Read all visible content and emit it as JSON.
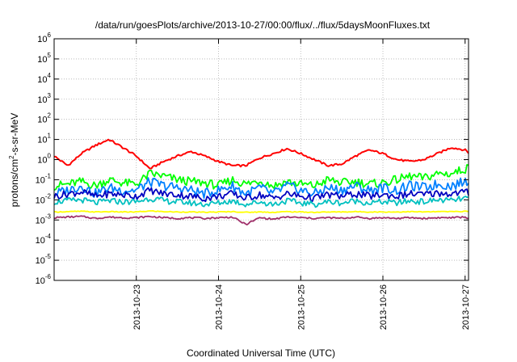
{
  "chart_data": {
    "type": "line",
    "title": "/data/run/goesPlots/archive/2013-10-27/00:00/flux/../flux/5daysMoonFluxes.txt",
    "xlabel": "Coordinated Universal Time (UTC)",
    "ylabel": "protons/cm2-s-sr-MeV",
    "ylabel_parts": {
      "base": "protons/cm",
      "sup": "2",
      "rest": "-s-sr-MeV"
    },
    "yscale": "log",
    "ylim": [
      1e-06,
      1000000.0
    ],
    "xlim": [
      "2013-10-22 00:00",
      "2013-10-27 01:00"
    ],
    "grid": true,
    "x_ticks": [
      {
        "label": "2013-10-23",
        "value": "2013-10-23 00:00"
      },
      {
        "label": "2013-10-24",
        "value": "2013-10-24 00:00"
      },
      {
        "label": "2013-10-25",
        "value": "2013-10-25 00:00"
      },
      {
        "label": "2013-10-26",
        "value": "2013-10-26 00:00"
      },
      {
        "label": "2013-10-27",
        "value": "2013-10-27 00:00"
      }
    ],
    "y_ticks": [
      {
        "base": "10",
        "exp": "-6",
        "value": 1e-06
      },
      {
        "base": "10",
        "exp": "-5",
        "value": 1e-05
      },
      {
        "base": "10",
        "exp": "-4",
        "value": 0.0001
      },
      {
        "base": "10",
        "exp": "-3",
        "value": 0.001
      },
      {
        "base": "10",
        "exp": "-2",
        "value": 0.01
      },
      {
        "base": "10",
        "exp": "-1",
        "value": 0.1
      },
      {
        "base": "10",
        "exp": "0",
        "value": 1
      },
      {
        "base": "10",
        "exp": "1",
        "value": 10
      },
      {
        "base": "10",
        "exp": "2",
        "value": 100
      },
      {
        "base": "10",
        "exp": "3",
        "value": 1000
      },
      {
        "base": "10",
        "exp": "4",
        "value": 10000
      },
      {
        "base": "10",
        "exp": "5",
        "value": 100000
      },
      {
        "base": "10",
        "exp": "6",
        "value": 1000000
      }
    ],
    "series": [
      {
        "color": "#ff0000",
        "x": [
          "2013-10-22 00:00",
          "2013-10-22 04:00",
          "2013-10-22 08:00",
          "2013-10-22 12:00",
          "2013-10-22 16:00",
          "2013-10-22 20:00",
          "2013-10-23 00:00",
          "2013-10-23 04:00",
          "2013-10-23 08:00",
          "2013-10-23 12:00",
          "2013-10-23 16:00",
          "2013-10-23 20:00",
          "2013-10-24 00:00",
          "2013-10-24 04:00",
          "2013-10-24 08:00",
          "2013-10-24 12:00",
          "2013-10-24 16:00",
          "2013-10-24 20:00",
          "2013-10-25 00:00",
          "2013-10-25 04:00",
          "2013-10-25 08:00",
          "2013-10-25 12:00",
          "2013-10-25 16:00",
          "2013-10-25 20:00",
          "2013-10-26 00:00",
          "2013-10-26 04:00",
          "2013-10-26 08:00",
          "2013-10-26 12:00",
          "2013-10-26 16:00",
          "2013-10-26 20:00",
          "2013-10-27 00:00",
          "2013-10-27 01:00"
        ],
        "values": [
          1.5,
          0.5,
          2,
          5,
          10,
          4,
          1.5,
          0.35,
          0.8,
          1.5,
          2.5,
          1.5,
          0.8,
          0.5,
          0.5,
          1.2,
          2,
          3.5,
          2,
          1,
          0.5,
          0.6,
          1.5,
          3,
          2,
          1,
          0.8,
          1,
          2,
          4,
          3,
          2.2
        ]
      },
      {
        "color": "#00ff00",
        "x": [
          "2013-10-22 00:00",
          "2013-10-22 04:00",
          "2013-10-22 08:00",
          "2013-10-22 12:00",
          "2013-10-22 16:00",
          "2013-10-22 20:00",
          "2013-10-23 00:00",
          "2013-10-23 04:00",
          "2013-10-23 08:00",
          "2013-10-23 12:00",
          "2013-10-23 16:00",
          "2013-10-23 20:00",
          "2013-10-24 00:00",
          "2013-10-24 04:00",
          "2013-10-24 08:00",
          "2013-10-24 12:00",
          "2013-10-24 16:00",
          "2013-10-24 20:00",
          "2013-10-25 00:00",
          "2013-10-25 04:00",
          "2013-10-25 08:00",
          "2013-10-25 12:00",
          "2013-10-25 16:00",
          "2013-10-25 20:00",
          "2013-10-26 00:00",
          "2013-10-26 04:00",
          "2013-10-26 08:00",
          "2013-10-26 12:00",
          "2013-10-26 16:00",
          "2013-10-26 20:00",
          "2013-10-27 00:00",
          "2013-10-27 01:00"
        ],
        "values": [
          0.05,
          0.06,
          0.08,
          0.05,
          0.1,
          0.07,
          0.06,
          0.2,
          0.15,
          0.1,
          0.08,
          0.07,
          0.05,
          0.1,
          0.06,
          0.09,
          0.05,
          0.08,
          0.06,
          0.05,
          0.1,
          0.07,
          0.08,
          0.06,
          0.07,
          0.1,
          0.15,
          0.12,
          0.2,
          0.2,
          0.35,
          0.38
        ]
      },
      {
        "color": "#0080ff",
        "x": [
          "2013-10-22 00:00",
          "2013-10-22 04:00",
          "2013-10-22 08:00",
          "2013-10-22 12:00",
          "2013-10-22 16:00",
          "2013-10-22 20:00",
          "2013-10-23 00:00",
          "2013-10-23 04:00",
          "2013-10-23 08:00",
          "2013-10-23 12:00",
          "2013-10-23 16:00",
          "2013-10-23 20:00",
          "2013-10-24 00:00",
          "2013-10-24 04:00",
          "2013-10-24 08:00",
          "2013-10-24 12:00",
          "2013-10-24 16:00",
          "2013-10-24 20:00",
          "2013-10-25 00:00",
          "2013-10-25 04:00",
          "2013-10-25 08:00",
          "2013-10-25 12:00",
          "2013-10-25 16:00",
          "2013-10-25 20:00",
          "2013-10-26 00:00",
          "2013-10-26 04:00",
          "2013-10-26 08:00",
          "2013-10-26 12:00",
          "2013-10-26 16:00",
          "2013-10-26 20:00",
          "2013-10-27 00:00",
          "2013-10-27 01:00"
        ],
        "values": [
          0.02,
          0.03,
          0.05,
          0.02,
          0.04,
          0.03,
          0.03,
          0.08,
          0.05,
          0.04,
          0.03,
          0.02,
          0.03,
          0.05,
          0.02,
          0.04,
          0.02,
          0.05,
          0.03,
          0.02,
          0.04,
          0.03,
          0.05,
          0.03,
          0.04,
          0.03,
          0.05,
          0.04,
          0.06,
          0.05,
          0.08,
          0.09
        ]
      },
      {
        "color": "#0000c0",
        "x": [
          "2013-10-22 00:00",
          "2013-10-22 04:00",
          "2013-10-22 08:00",
          "2013-10-22 12:00",
          "2013-10-22 16:00",
          "2013-10-22 20:00",
          "2013-10-23 00:00",
          "2013-10-23 04:00",
          "2013-10-23 08:00",
          "2013-10-23 12:00",
          "2013-10-23 16:00",
          "2013-10-23 20:00",
          "2013-10-24 00:00",
          "2013-10-24 04:00",
          "2013-10-24 08:00",
          "2013-10-24 12:00",
          "2013-10-24 16:00",
          "2013-10-24 20:00",
          "2013-10-25 00:00",
          "2013-10-25 04:00",
          "2013-10-25 08:00",
          "2013-10-25 12:00",
          "2013-10-25 16:00",
          "2013-10-25 20:00",
          "2013-10-26 00:00",
          "2013-10-26 04:00",
          "2013-10-26 08:00",
          "2013-10-26 12:00",
          "2013-10-26 16:00",
          "2013-10-26 20:00",
          "2013-10-27 00:00",
          "2013-10-27 01:00"
        ],
        "values": [
          0.015,
          0.02,
          0.025,
          0.015,
          0.02,
          0.018,
          0.015,
          0.03,
          0.02,
          0.018,
          0.015,
          0.012,
          0.015,
          0.02,
          0.012,
          0.018,
          0.012,
          0.02,
          0.015,
          0.012,
          0.018,
          0.015,
          0.02,
          0.015,
          0.018,
          0.015,
          0.02,
          0.018,
          0.022,
          0.02,
          0.025,
          0.022
        ]
      },
      {
        "color": "#00c0c0",
        "x": [
          "2013-10-22 00:00",
          "2013-10-22 04:00",
          "2013-10-22 08:00",
          "2013-10-22 12:00",
          "2013-10-22 16:00",
          "2013-10-22 20:00",
          "2013-10-23 00:00",
          "2013-10-23 04:00",
          "2013-10-23 08:00",
          "2013-10-23 12:00",
          "2013-10-23 16:00",
          "2013-10-23 20:00",
          "2013-10-24 00:00",
          "2013-10-24 04:00",
          "2013-10-24 08:00",
          "2013-10-24 12:00",
          "2013-10-24 16:00",
          "2013-10-24 20:00",
          "2013-10-25 00:00",
          "2013-10-25 04:00",
          "2013-10-25 08:00",
          "2013-10-25 12:00",
          "2013-10-25 16:00",
          "2013-10-25 20:00",
          "2013-10-26 00:00",
          "2013-10-26 04:00",
          "2013-10-26 08:00",
          "2013-10-26 12:00",
          "2013-10-26 16:00",
          "2013-10-26 20:00",
          "2013-10-27 00:00",
          "2013-10-27 01:00"
        ],
        "values": [
          0.008,
          0.009,
          0.01,
          0.007,
          0.009,
          0.008,
          0.008,
          0.012,
          0.009,
          0.008,
          0.007,
          0.006,
          0.007,
          0.009,
          0.006,
          0.008,
          0.006,
          0.009,
          0.007,
          0.006,
          0.008,
          0.007,
          0.009,
          0.007,
          0.008,
          0.007,
          0.009,
          0.008,
          0.01,
          0.009,
          0.012,
          0.012
        ]
      },
      {
        "color": "#ffff00",
        "x": [
          "2013-10-22 00:00",
          "2013-10-22 04:00",
          "2013-10-22 08:00",
          "2013-10-22 12:00",
          "2013-10-22 16:00",
          "2013-10-22 20:00",
          "2013-10-23 00:00",
          "2013-10-23 04:00",
          "2013-10-23 08:00",
          "2013-10-23 12:00",
          "2013-10-23 16:00",
          "2013-10-23 20:00",
          "2013-10-24 00:00",
          "2013-10-24 04:00",
          "2013-10-24 08:00",
          "2013-10-24 12:00",
          "2013-10-24 16:00",
          "2013-10-24 20:00",
          "2013-10-25 00:00",
          "2013-10-25 04:00",
          "2013-10-25 08:00",
          "2013-10-25 12:00",
          "2013-10-25 16:00",
          "2013-10-25 20:00",
          "2013-10-26 00:00",
          "2013-10-26 04:00",
          "2013-10-26 08:00",
          "2013-10-26 12:00",
          "2013-10-26 16:00",
          "2013-10-26 20:00",
          "2013-10-27 00:00",
          "2013-10-27 01:00"
        ],
        "values": [
          0.0025,
          0.0026,
          0.0027,
          0.0025,
          0.0026,
          0.0025,
          0.0025,
          0.0028,
          0.0026,
          0.0025,
          0.0025,
          0.0024,
          0.0025,
          0.0026,
          0.0024,
          0.0025,
          0.0024,
          0.0026,
          0.0025,
          0.0024,
          0.0025,
          0.0025,
          0.0026,
          0.0025,
          0.0025,
          0.0025,
          0.0026,
          0.0025,
          0.0026,
          0.0026,
          0.0027,
          0.0027
        ]
      },
      {
        "color": "#a0306a",
        "x": [
          "2013-10-22 00:00",
          "2013-10-22 04:00",
          "2013-10-22 08:00",
          "2013-10-22 12:00",
          "2013-10-22 16:00",
          "2013-10-22 20:00",
          "2013-10-23 00:00",
          "2013-10-23 04:00",
          "2013-10-23 08:00",
          "2013-10-23 12:00",
          "2013-10-23 16:00",
          "2013-10-23 20:00",
          "2013-10-24 00:00",
          "2013-10-24 04:00",
          "2013-10-24 08:00",
          "2013-10-24 12:00",
          "2013-10-24 16:00",
          "2013-10-24 20:00",
          "2013-10-25 00:00",
          "2013-10-25 04:00",
          "2013-10-25 08:00",
          "2013-10-25 12:00",
          "2013-10-25 16:00",
          "2013-10-25 20:00",
          "2013-10-26 00:00",
          "2013-10-26 04:00",
          "2013-10-26 08:00",
          "2013-10-26 12:00",
          "2013-10-26 16:00",
          "2013-10-26 20:00",
          "2013-10-27 00:00",
          "2013-10-27 01:00"
        ],
        "values": [
          0.0013,
          0.0014,
          0.0015,
          0.0012,
          0.0014,
          0.0013,
          0.0013,
          0.0015,
          0.0013,
          0.0012,
          0.0013,
          0.0012,
          0.0013,
          0.0014,
          0.0006,
          0.0013,
          0.0011,
          0.0014,
          0.0013,
          0.0012,
          0.0013,
          0.0012,
          0.0014,
          0.0012,
          0.0013,
          0.0012,
          0.0013,
          0.0012,
          0.0013,
          0.0013,
          0.0014,
          0.0012
        ]
      }
    ]
  }
}
